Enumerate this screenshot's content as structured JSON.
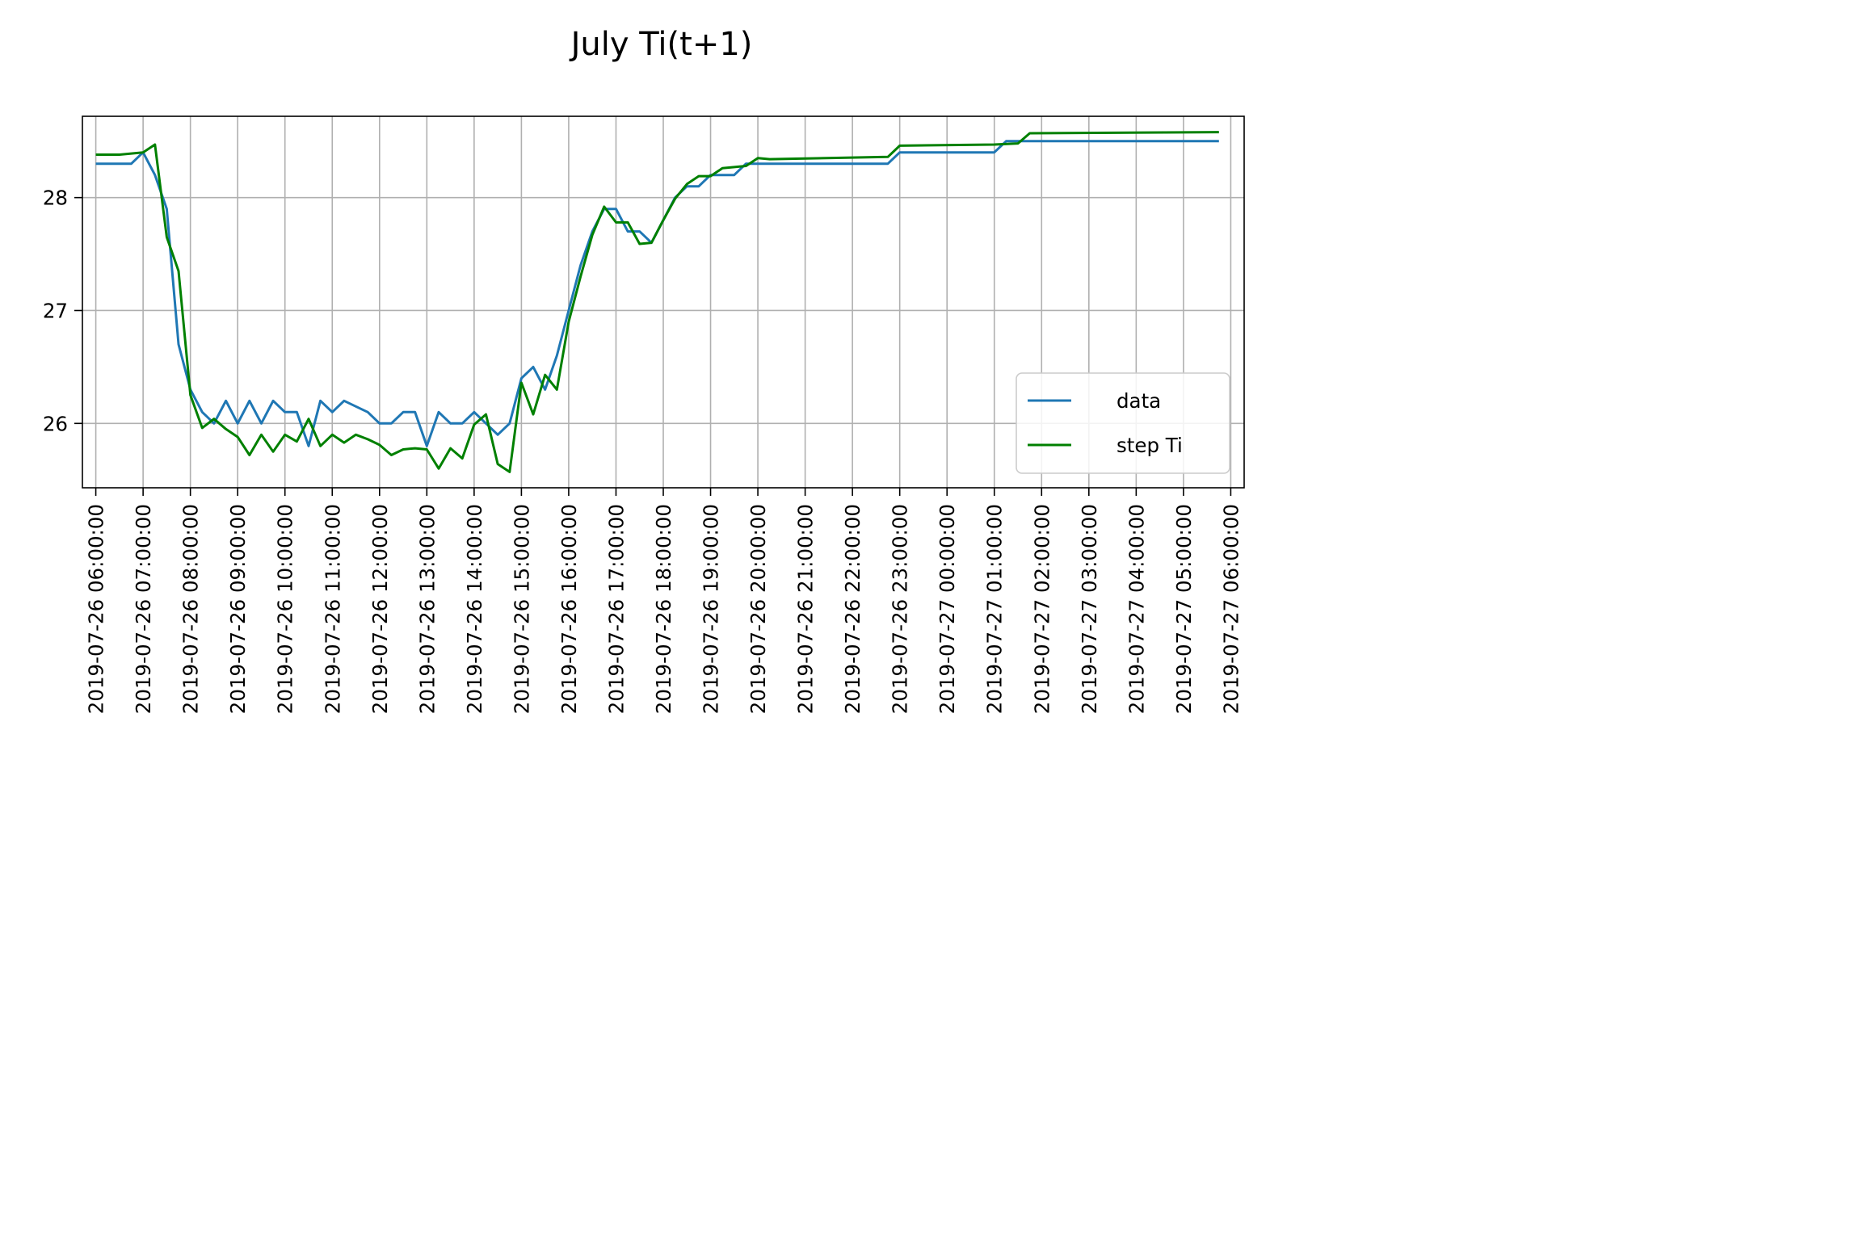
{
  "chart_data": {
    "type": "line",
    "title": "July Ti(t+1)",
    "xlabel": "",
    "ylabel": "",
    "ylim": [
      25.43,
      28.72
    ],
    "xlim": [
      "2019-07-26 05:43:00",
      "2019-07-27 06:17:00"
    ],
    "grid": true,
    "legend_position": "lower-right",
    "yticks": [
      26,
      27,
      28
    ],
    "xticks": [
      "2019-07-26 06:00:00",
      "2019-07-26 07:00:00",
      "2019-07-26 08:00:00",
      "2019-07-26 09:00:00",
      "2019-07-26 10:00:00",
      "2019-07-26 11:00:00",
      "2019-07-26 12:00:00",
      "2019-07-26 13:00:00",
      "2019-07-26 14:00:00",
      "2019-07-26 15:00:00",
      "2019-07-26 16:00:00",
      "2019-07-26 17:00:00",
      "2019-07-26 18:00:00",
      "2019-07-26 19:00:00",
      "2019-07-26 20:00:00",
      "2019-07-26 21:00:00",
      "2019-07-26 22:00:00",
      "2019-07-26 23:00:00",
      "2019-07-27 00:00:00",
      "2019-07-27 01:00:00",
      "2019-07-27 02:00:00",
      "2019-07-27 03:00:00",
      "2019-07-27 04:00:00",
      "2019-07-27 05:00:00",
      "2019-07-27 06:00:00"
    ],
    "series": [
      {
        "name": "data",
        "color": "#1f77b4",
        "points": [
          [
            "2019-07-26 06:00:00",
            28.3
          ],
          [
            "2019-07-26 06:45:00",
            28.3
          ],
          [
            "2019-07-26 07:00:00",
            28.4
          ],
          [
            "2019-07-26 07:15:00",
            28.2
          ],
          [
            "2019-07-26 07:30:00",
            27.9
          ],
          [
            "2019-07-26 07:45:00",
            26.7
          ],
          [
            "2019-07-26 08:00:00",
            26.3
          ],
          [
            "2019-07-26 08:15:00",
            26.1
          ],
          [
            "2019-07-26 08:30:00",
            26.0
          ],
          [
            "2019-07-26 08:45:00",
            26.2
          ],
          [
            "2019-07-26 09:00:00",
            26.0
          ],
          [
            "2019-07-26 09:15:00",
            26.2
          ],
          [
            "2019-07-26 09:30:00",
            26.0
          ],
          [
            "2019-07-26 09:45:00",
            26.2
          ],
          [
            "2019-07-26 10:00:00",
            26.1
          ],
          [
            "2019-07-26 10:15:00",
            26.1
          ],
          [
            "2019-07-26 10:30:00",
            25.8
          ],
          [
            "2019-07-26 10:45:00",
            26.2
          ],
          [
            "2019-07-26 11:00:00",
            26.1
          ],
          [
            "2019-07-26 11:15:00",
            26.2
          ],
          [
            "2019-07-26 11:30:00",
            26.15
          ],
          [
            "2019-07-26 11:45:00",
            26.1
          ],
          [
            "2019-07-26 12:00:00",
            26.0
          ],
          [
            "2019-07-26 12:15:00",
            26.0
          ],
          [
            "2019-07-26 12:30:00",
            26.1
          ],
          [
            "2019-07-26 12:45:00",
            26.1
          ],
          [
            "2019-07-26 13:00:00",
            25.8
          ],
          [
            "2019-07-26 13:15:00",
            26.1
          ],
          [
            "2019-07-26 13:30:00",
            26.0
          ],
          [
            "2019-07-26 13:45:00",
            26.0
          ],
          [
            "2019-07-26 14:00:00",
            26.1
          ],
          [
            "2019-07-26 14:15:00",
            26.0
          ],
          [
            "2019-07-26 14:30:00",
            25.9
          ],
          [
            "2019-07-26 14:45:00",
            26.0
          ],
          [
            "2019-07-26 15:00:00",
            26.4
          ],
          [
            "2019-07-26 15:15:00",
            26.5
          ],
          [
            "2019-07-26 15:30:00",
            26.3
          ],
          [
            "2019-07-26 15:45:00",
            26.6
          ],
          [
            "2019-07-26 16:00:00",
            27.0
          ],
          [
            "2019-07-26 16:15:00",
            27.4
          ],
          [
            "2019-07-26 16:30:00",
            27.7
          ],
          [
            "2019-07-26 16:45:00",
            27.9
          ],
          [
            "2019-07-26 17:00:00",
            27.9
          ],
          [
            "2019-07-26 17:15:00",
            27.7
          ],
          [
            "2019-07-26 17:30:00",
            27.7
          ],
          [
            "2019-07-26 17:45:00",
            27.6
          ],
          [
            "2019-07-26 18:00:00",
            27.8
          ],
          [
            "2019-07-26 18:15:00",
            28.0
          ],
          [
            "2019-07-26 18:30:00",
            28.1
          ],
          [
            "2019-07-26 18:45:00",
            28.1
          ],
          [
            "2019-07-26 19:00:00",
            28.2
          ],
          [
            "2019-07-26 19:30:00",
            28.2
          ],
          [
            "2019-07-26 19:45:00",
            28.3
          ],
          [
            "2019-07-26 22:45:00",
            28.3
          ],
          [
            "2019-07-26 23:00:00",
            28.4
          ],
          [
            "2019-07-27 01:00:00",
            28.4
          ],
          [
            "2019-07-27 01:15:00",
            28.5
          ],
          [
            "2019-07-27 05:45:00",
            28.5
          ]
        ]
      },
      {
        "name": "step Ti",
        "color": "#008000",
        "points": [
          [
            "2019-07-26 06:00:00",
            28.38
          ],
          [
            "2019-07-26 06:15:00",
            28.38
          ],
          [
            "2019-07-26 06:30:00",
            28.38
          ],
          [
            "2019-07-26 06:45:00",
            28.39
          ],
          [
            "2019-07-26 07:00:00",
            28.4
          ],
          [
            "2019-07-26 07:15:00",
            28.47
          ],
          [
            "2019-07-26 07:30:00",
            27.65
          ],
          [
            "2019-07-26 07:45:00",
            27.35
          ],
          [
            "2019-07-26 08:00:00",
            26.25
          ],
          [
            "2019-07-26 08:15:00",
            25.96
          ],
          [
            "2019-07-26 08:30:00",
            26.04
          ],
          [
            "2019-07-26 08:45:00",
            25.95
          ],
          [
            "2019-07-26 09:00:00",
            25.88
          ],
          [
            "2019-07-26 09:15:00",
            25.72
          ],
          [
            "2019-07-26 09:30:00",
            25.9
          ],
          [
            "2019-07-26 09:45:00",
            25.75
          ],
          [
            "2019-07-26 10:00:00",
            25.9
          ],
          [
            "2019-07-26 10:15:00",
            25.84
          ],
          [
            "2019-07-26 10:30:00",
            26.04
          ],
          [
            "2019-07-26 10:45:00",
            25.8
          ],
          [
            "2019-07-26 11:00:00",
            25.9
          ],
          [
            "2019-07-26 11:15:00",
            25.83
          ],
          [
            "2019-07-26 11:30:00",
            25.9
          ],
          [
            "2019-07-26 11:45:00",
            25.86
          ],
          [
            "2019-07-26 12:00:00",
            25.81
          ],
          [
            "2019-07-26 12:15:00",
            25.72
          ],
          [
            "2019-07-26 12:30:00",
            25.77
          ],
          [
            "2019-07-26 12:45:00",
            25.78
          ],
          [
            "2019-07-26 13:00:00",
            25.77
          ],
          [
            "2019-07-26 13:15:00",
            25.6
          ],
          [
            "2019-07-26 13:30:00",
            25.78
          ],
          [
            "2019-07-26 13:45:00",
            25.69
          ],
          [
            "2019-07-26 14:00:00",
            25.99
          ],
          [
            "2019-07-26 14:15:00",
            26.08
          ],
          [
            "2019-07-26 14:30:00",
            25.64
          ],
          [
            "2019-07-26 14:45:00",
            25.57
          ],
          [
            "2019-07-26 15:00:00",
            26.36
          ],
          [
            "2019-07-26 15:15:00",
            26.08
          ],
          [
            "2019-07-26 15:30:00",
            26.43
          ],
          [
            "2019-07-26 15:45:00",
            26.3
          ],
          [
            "2019-07-26 16:00:00",
            26.9
          ],
          [
            "2019-07-26 16:15:00",
            27.3
          ],
          [
            "2019-07-26 16:30:00",
            27.67
          ],
          [
            "2019-07-26 16:45:00",
            27.92
          ],
          [
            "2019-07-26 17:00:00",
            27.78
          ],
          [
            "2019-07-26 17:15:00",
            27.78
          ],
          [
            "2019-07-26 17:30:00",
            27.59
          ],
          [
            "2019-07-26 17:45:00",
            27.6
          ],
          [
            "2019-07-26 18:00:00",
            27.8
          ],
          [
            "2019-07-26 18:15:00",
            27.99
          ],
          [
            "2019-07-26 18:30:00",
            28.12
          ],
          [
            "2019-07-26 18:45:00",
            28.19
          ],
          [
            "2019-07-26 19:00:00",
            28.19
          ],
          [
            "2019-07-26 19:15:00",
            28.26
          ],
          [
            "2019-07-26 19:30:00",
            28.27
          ],
          [
            "2019-07-26 19:45:00",
            28.28
          ],
          [
            "2019-07-26 20:00:00",
            28.35
          ],
          [
            "2019-07-26 20:15:00",
            28.34
          ],
          [
            "2019-07-26 22:45:00",
            28.36
          ],
          [
            "2019-07-26 23:00:00",
            28.46
          ],
          [
            "2019-07-27 01:00:00",
            28.47
          ],
          [
            "2019-07-27 01:30:00",
            28.48
          ],
          [
            "2019-07-27 01:45:00",
            28.57
          ],
          [
            "2019-07-27 05:45:00",
            28.58
          ]
        ]
      }
    ]
  }
}
